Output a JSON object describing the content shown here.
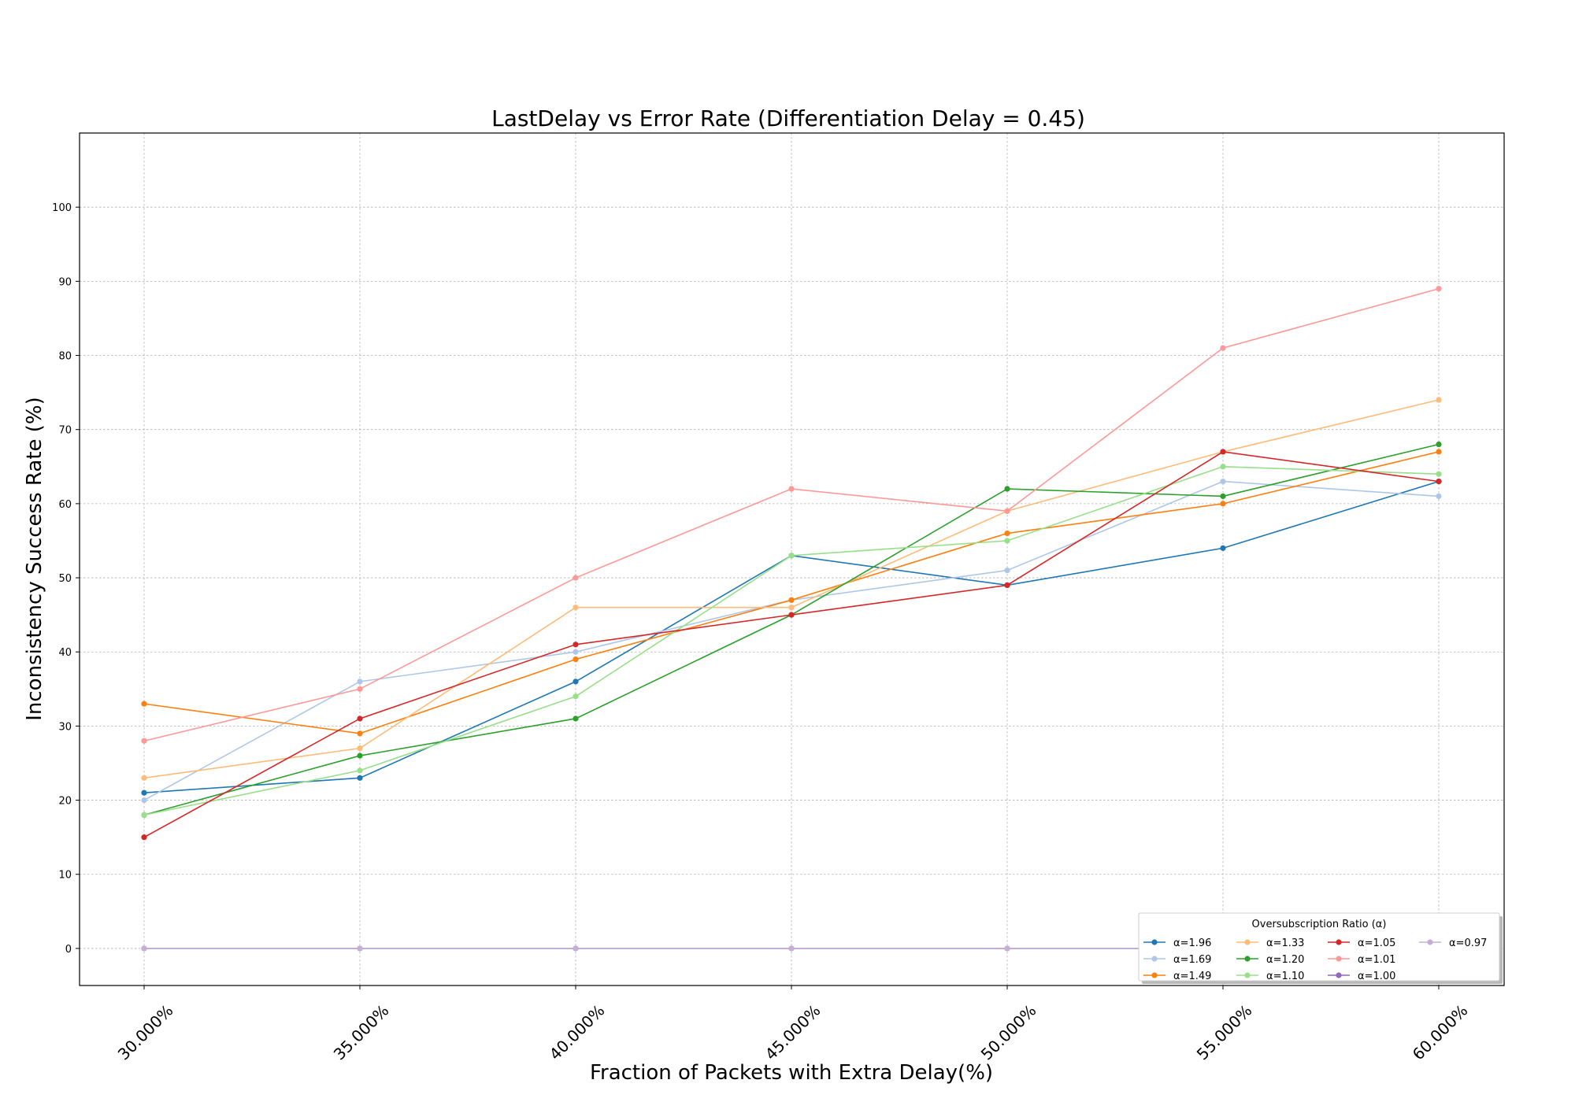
{
  "chart_data": {
    "type": "line",
    "title": "LastDelay vs Error Rate (Differentiation Delay = 0.45)",
    "xlabel": "Fraction of Packets with Extra Delay(%)",
    "ylabel": "Inconsistency Success Rate (%)",
    "categories": [
      "30.000%",
      "35.000%",
      "40.000%",
      "45.000%",
      "50.000%",
      "55.000%",
      "60.000%"
    ],
    "yticks": [
      0,
      10,
      20,
      30,
      40,
      50,
      60,
      70,
      80,
      90,
      100
    ],
    "ylim": [
      -5,
      110
    ],
    "grid": true,
    "legend": {
      "title": "Oversubscription Ratio (α)",
      "position": "lower-right",
      "columns": 4
    },
    "series": [
      {
        "name": "α=1.96",
        "color": "#1f77b4",
        "values": [
          21,
          23,
          36,
          53,
          49,
          54,
          63
        ]
      },
      {
        "name": "α=1.69",
        "color": "#aec7e8",
        "values": [
          20,
          36,
          40,
          47,
          51,
          63,
          61
        ]
      },
      {
        "name": "α=1.49",
        "color": "#ff7f0e",
        "values": [
          33,
          29,
          39,
          47,
          56,
          60,
          67
        ]
      },
      {
        "name": "α=1.33",
        "color": "#ffbb78",
        "values": [
          23,
          27,
          46,
          46,
          59,
          67,
          74
        ]
      },
      {
        "name": "α=1.20",
        "color": "#2ca02c",
        "values": [
          18,
          26,
          31,
          45,
          62,
          61,
          68
        ]
      },
      {
        "name": "α=1.10",
        "color": "#98df8a",
        "values": [
          18,
          24,
          34,
          53,
          55,
          65,
          64
        ]
      },
      {
        "name": "α=1.05",
        "color": "#d62728",
        "values": [
          15,
          31,
          41,
          45,
          49,
          67,
          63
        ]
      },
      {
        "name": "α=1.01",
        "color": "#ff9896",
        "values": [
          28,
          35,
          50,
          62,
          59,
          81,
          89
        ]
      },
      {
        "name": "α=1.00",
        "color": "#9467bd",
        "values": [
          0,
          0,
          0,
          0,
          0,
          0,
          0
        ]
      },
      {
        "name": "α=0.97",
        "color": "#c5b0d5",
        "values": [
          0,
          0,
          0,
          0,
          0,
          0,
          0
        ]
      }
    ]
  }
}
